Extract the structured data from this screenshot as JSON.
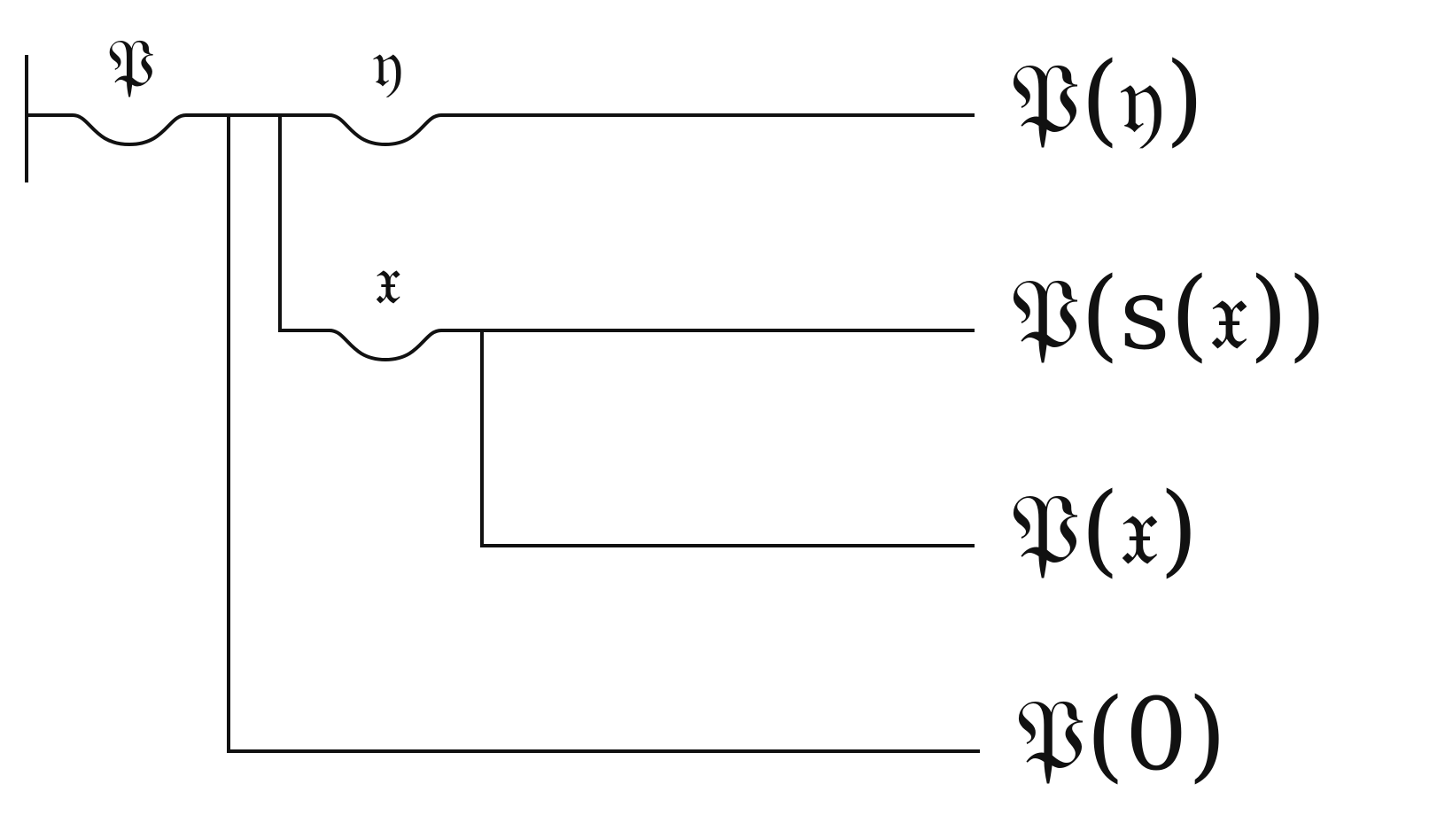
{
  "diagram": {
    "quantifiers": {
      "outer": "𝔓",
      "first_inner": "𝔶",
      "second_inner": "𝔵"
    },
    "consequences": [
      "𝔓(𝔶)",
      "𝔓(s(𝔵))",
      "𝔓(𝔵)",
      "𝔓(0)"
    ]
  }
}
